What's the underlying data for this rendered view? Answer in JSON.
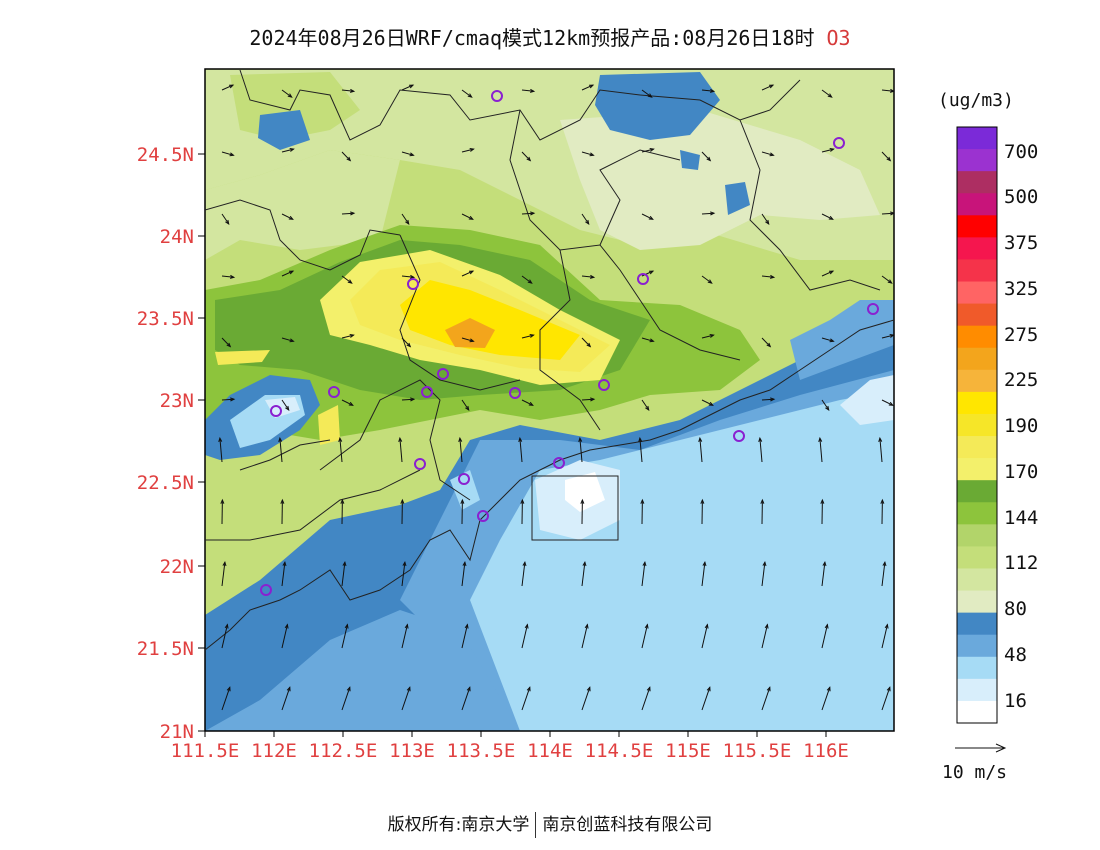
{
  "title": {
    "main": "2024年08月26日WRF/cmaq模式12km预报产品:08月26日18时",
    "variable": "O3"
  },
  "axes": {
    "lat_ticks": [
      "24.5N",
      "24N",
      "23.5N",
      "23N",
      "22.5N",
      "22N",
      "21.5N",
      "21N"
    ],
    "lon_ticks": [
      "111.5E",
      "112E",
      "112.5E",
      "113E",
      "113.5E",
      "114E",
      "114.5E",
      "115E",
      "115.5E",
      "116E"
    ]
  },
  "legend": {
    "unit": "(ug/m3)",
    "colors": [
      "#7b2ad8",
      "#9b32d0",
      "#ad2e62",
      "#c8147a",
      "#ff0000",
      "#f5164e",
      "#f5334a",
      "#ff6464",
      "#f05a2a",
      "#ff8c00",
      "#f3a51c",
      "#f6b43a",
      "#ffe600",
      "#f6e628",
      "#f4ea58",
      "#f3f06b",
      "#6aaa34",
      "#8dc43c",
      "#b2d46a",
      "#c4de7a",
      "#d3e6a0",
      "#e1ebc2",
      "#4287c4",
      "#6aa9dc",
      "#a6dbf5",
      "#d8eefb",
      "#ffffff"
    ],
    "labels": [
      "700",
      "500",
      "375",
      "325",
      "275",
      "225",
      "190",
      "170",
      "144",
      "112",
      "80",
      "48",
      "16"
    ]
  },
  "wind_scale": {
    "label": "10 m/s"
  },
  "stations": [
    "s1",
    "s2",
    "s3",
    "s4",
    "s5",
    "s6",
    "s7",
    "s8",
    "s9",
    "s10",
    "s11",
    "s12",
    "s13",
    "s14",
    "s15",
    "s16",
    "s17"
  ],
  "footer": {
    "copyright": "版权所有:南京大学",
    "company": "南京创蓝科技有限公司"
  }
}
